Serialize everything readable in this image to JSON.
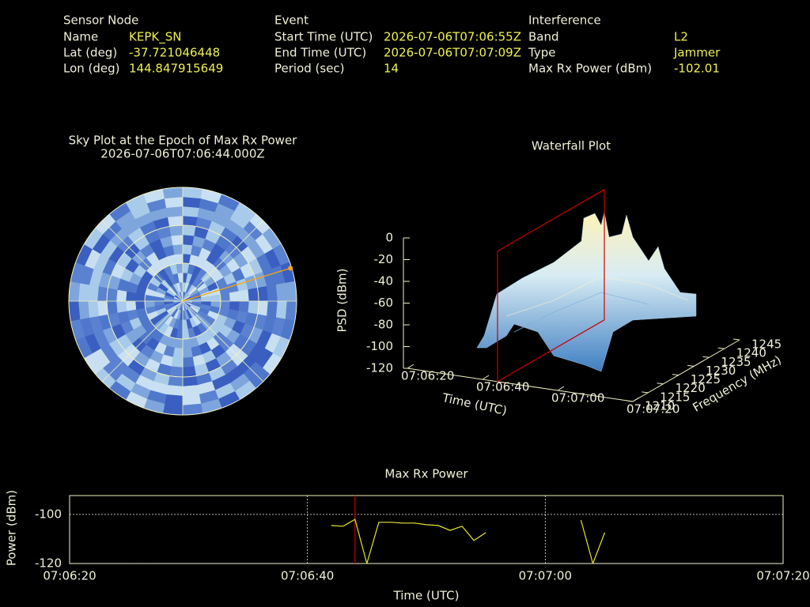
{
  "info": {
    "sensor": {
      "heading": "Sensor Node",
      "rows": [
        [
          "Name",
          "KEPK_SN"
        ],
        [
          "Lat (deg)",
          "-37.721046448"
        ],
        [
          "Lon (deg)",
          "144.847915649"
        ]
      ]
    },
    "event": {
      "heading": "Event",
      "rows": [
        [
          "Start Time (UTC)",
          "2026-07-06T07:06:55Z"
        ],
        [
          "End Time (UTC)",
          "2026-07-06T07:07:09Z"
        ],
        [
          "Period (sec)",
          "14"
        ]
      ]
    },
    "interference": {
      "heading": "Interference",
      "rows": [
        [
          "Band",
          "L2"
        ],
        [
          "Type",
          "Jammer"
        ],
        [
          "Max Rx Power (dBm)",
          "-102.01"
        ]
      ]
    }
  },
  "chart_data": [
    {
      "type": "polar",
      "title": "Sky Plot at the Epoch of Max Rx Power",
      "subtitle": "2026-07-06T07:06:44.000Z",
      "rings": [
        0,
        30,
        60
      ],
      "point": {
        "azimuth": 73,
        "elevation": 1,
        "color": "#ffa500"
      }
    },
    {
      "type": "surface",
      "title": "Waterfall Plot",
      "xlabel": "Time (UTC)",
      "ylabel": "Frequency (MHz)",
      "zlabel": "PSD (dBm)",
      "xlim": [
        0,
        60
      ],
      "xticks": [
        {
          "value": 0,
          "label": "07:06:20"
        },
        {
          "value": 20,
          "label": "07:06:40"
        },
        {
          "value": 40,
          "label": "07:07:00"
        },
        {
          "value": 60,
          "label": "07:07:20"
        }
      ],
      "ylim": [
        1210,
        1245
      ],
      "yticks": [
        1210,
        1215,
        1220,
        1225,
        1230,
        1235,
        1240,
        1245
      ],
      "zlim": [
        -120,
        0
      ],
      "zticks": [
        0,
        -20,
        -40,
        -60,
        -80,
        -100,
        -120
      ],
      "plane_x": 24,
      "plane_color": "#cc0000"
    },
    {
      "type": "line",
      "title": "Max Rx Power",
      "xlabel": "Time (UTC)",
      "ylabel": "Power (dBm)",
      "xlim": [
        0,
        60
      ],
      "xticks": [
        {
          "value": 0,
          "label": "07:06:20"
        },
        {
          "value": 20,
          "label": "07:06:40"
        },
        {
          "value": 40,
          "label": "07:07:00"
        },
        {
          "value": 60,
          "label": "07:07:20"
        }
      ],
      "ylim": [
        -120,
        -92.3
      ],
      "yticks": [
        -100,
        -120
      ],
      "grid": true,
      "marker_x": 24,
      "marker_color": "#cc0000",
      "x": [
        22,
        23,
        24,
        25,
        26,
        27,
        28,
        29,
        30,
        31,
        32,
        33,
        34,
        35,
        36,
        37,
        38,
        39,
        40,
        41,
        42,
        43,
        44,
        45
      ],
      "series": [
        {
          "name": "Max Rx Power",
          "color": "#e6e62e",
          "values": [
            -104.5,
            -104.8,
            -102.01,
            -120,
            -103.2,
            -103.2,
            -103.5,
            -103.5,
            -104.2,
            -104.5,
            -106.5,
            -104.8,
            -110.6,
            -107.4,
            null,
            null,
            null,
            null,
            null,
            null,
            null,
            -102.3,
            -120,
            -107.4
          ]
        }
      ]
    }
  ]
}
